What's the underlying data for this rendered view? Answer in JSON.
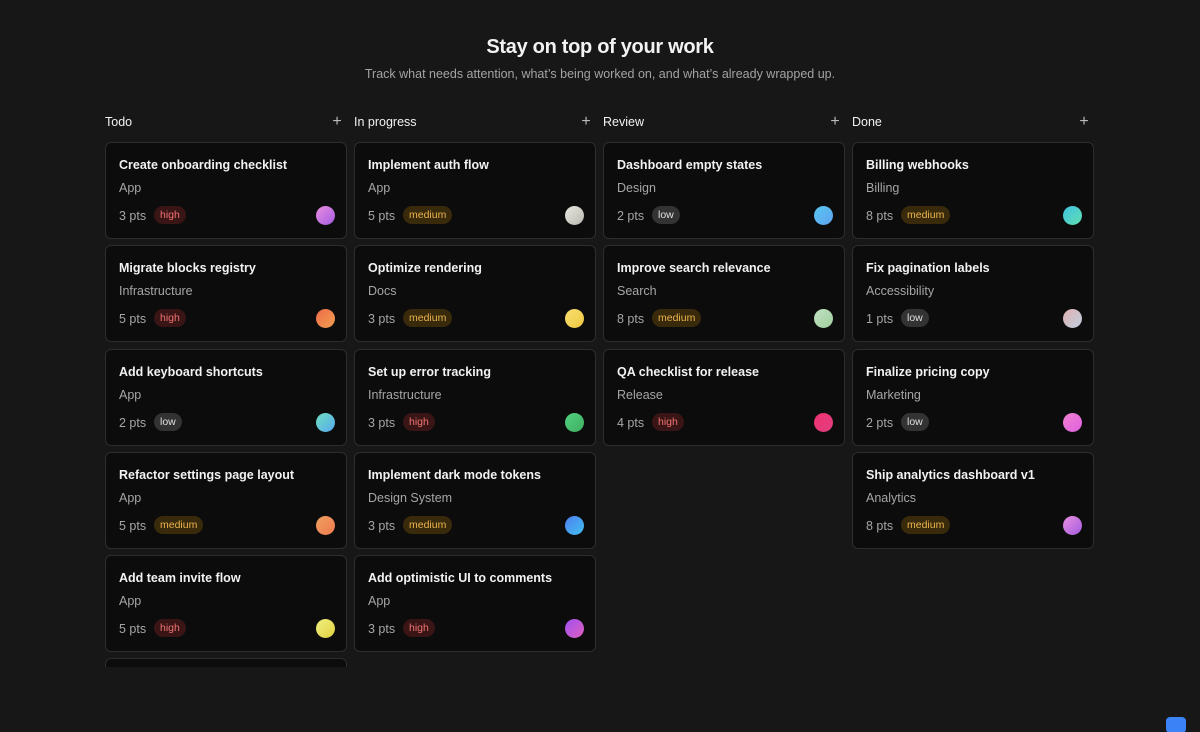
{
  "header": {
    "title": "Stay on top of your work",
    "subtitle": "Track what needs attention, what’s being worked on, and what’s already wrapped up."
  },
  "columns": [
    {
      "title": "Todo",
      "cards": [
        {
          "title": "Create onboarding checklist",
          "project": "App",
          "points": "3 pts",
          "priority": "high"
        },
        {
          "title": "Migrate blocks registry",
          "project": "Infrastructure",
          "points": "5 pts",
          "priority": "high"
        },
        {
          "title": "Add keyboard shortcuts",
          "project": "App",
          "points": "2 pts",
          "priority": "low"
        },
        {
          "title": "Refactor settings page layout",
          "project": "App",
          "points": "5 pts",
          "priority": "medium"
        },
        {
          "title": "Add team invite flow",
          "project": "App",
          "points": "5 pts",
          "priority": "high"
        }
      ]
    },
    {
      "title": "In progress",
      "cards": [
        {
          "title": "Implement auth flow",
          "project": "App",
          "points": "5 pts",
          "priority": "medium"
        },
        {
          "title": "Optimize rendering",
          "project": "Docs",
          "points": "3 pts",
          "priority": "medium"
        },
        {
          "title": "Set up error tracking",
          "project": "Infrastructure",
          "points": "3 pts",
          "priority": "high"
        },
        {
          "title": "Implement dark mode tokens",
          "project": "Design System",
          "points": "3 pts",
          "priority": "medium"
        },
        {
          "title": "Add optimistic UI to comments",
          "project": "App",
          "points": "3 pts",
          "priority": "high"
        }
      ]
    },
    {
      "title": "Review",
      "cards": [
        {
          "title": "Dashboard empty states",
          "project": "Design",
          "points": "2 pts",
          "priority": "low"
        },
        {
          "title": "Improve search relevance",
          "project": "Search",
          "points": "8 pts",
          "priority": "medium"
        },
        {
          "title": "QA checklist for release",
          "project": "Release",
          "points": "4 pts",
          "priority": "high"
        }
      ]
    },
    {
      "title": "Done",
      "cards": [
        {
          "title": "Billing webhooks",
          "project": "Billing",
          "points": "8 pts",
          "priority": "medium"
        },
        {
          "title": "Fix pagination labels",
          "project": "Accessibility",
          "points": "1 pts",
          "priority": "low"
        },
        {
          "title": "Finalize pricing copy",
          "project": "Marketing",
          "points": "2 pts",
          "priority": "low"
        },
        {
          "title": "Ship analytics dashboard v1",
          "project": "Analytics",
          "points": "8 pts",
          "priority": "medium"
        }
      ]
    }
  ]
}
